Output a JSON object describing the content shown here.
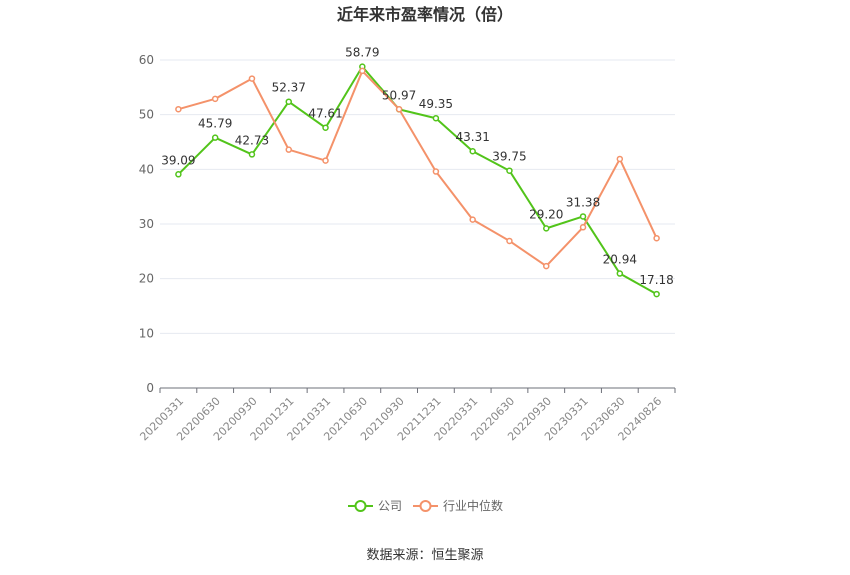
{
  "chart_data": {
    "type": "line",
    "title": "近年来市盈率情况（倍）",
    "categories": [
      "20200331",
      "20200630",
      "20200930",
      "20201231",
      "20210331",
      "20210630",
      "20210930",
      "20211231",
      "20220331",
      "20220630",
      "20220930",
      "20230331",
      "20230630",
      "20240826"
    ],
    "series": [
      {
        "name": "公司",
        "color": "#52c41a",
        "values": [
          39.09,
          45.79,
          42.73,
          52.37,
          47.61,
          58.79,
          50.97,
          49.35,
          43.31,
          39.75,
          29.2,
          31.38,
          20.94,
          17.18
        ],
        "labels": [
          "39.09",
          "45.79",
          "42.73",
          "52.37",
          "47.61",
          "58.79",
          "50.97",
          "49.35",
          "43.31",
          "39.75",
          "29.20",
          "31.38",
          "20.94",
          "17.18"
        ]
      },
      {
        "name": "行业中位数",
        "color": "#f4926a",
        "values": [
          51.0,
          52.9,
          56.6,
          43.6,
          41.6,
          58.0,
          51.0,
          39.6,
          30.8,
          26.9,
          22.3,
          29.4,
          41.9,
          27.4
        ]
      }
    ],
    "ylim": [
      0,
      60
    ],
    "yticks": [
      0,
      10,
      20,
      30,
      40,
      50,
      60
    ],
    "grid": true,
    "legend_position": "bottom"
  },
  "source_text": "数据来源：恒生聚源"
}
